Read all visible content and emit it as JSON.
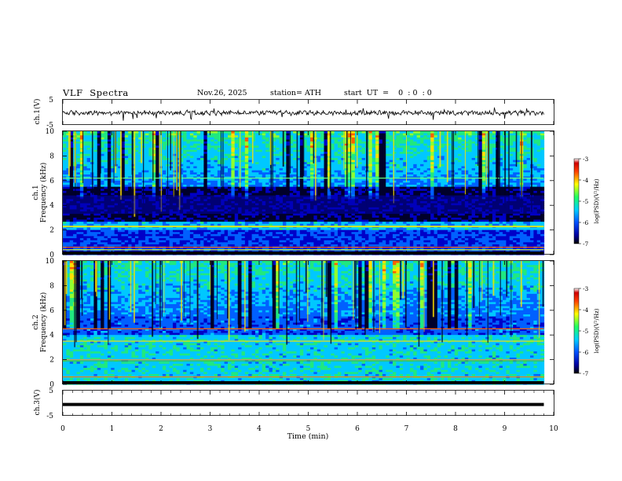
{
  "header": {
    "title": "VLF  Spectra",
    "date": "Nov.26, 2025",
    "station": "station= ATH",
    "start": "start  UT  =    0  : 0  : 0"
  },
  "chart_data": [
    {
      "type": "line",
      "name": "waveform-ch1",
      "ylabel": "ch.1(V)",
      "ylim": [
        -5,
        5
      ],
      "yticks": [
        "5",
        "-5"
      ],
      "xlim": [
        0,
        10
      ],
      "x_end": 9.8,
      "level": -0.2
    },
    {
      "type": "heatmap",
      "name": "spectrogram-ch1",
      "ylabel_channel": "ch.1",
      "ylabel": "Frequency  (kHz)",
      "ylim": [
        0,
        10
      ],
      "yticks": [
        "0",
        "2",
        "4",
        "6",
        "8",
        "10"
      ],
      "xlim": [
        0,
        10
      ],
      "x_end": 9.8,
      "colorbar": {
        "label": "log(PSD)(V²/Hz)",
        "range": [
          -7,
          -3
        ],
        "ticks": [
          "-3",
          "-4",
          "-5",
          "-6",
          "-7"
        ]
      }
    },
    {
      "type": "heatmap",
      "name": "spectrogram-ch2",
      "ylabel_channel": "ch.2",
      "ylabel": "Frequency  (kHz)",
      "ylim": [
        0,
        10
      ],
      "yticks": [
        "0",
        "2",
        "4",
        "6",
        "8",
        "10"
      ],
      "xlim": [
        0,
        10
      ],
      "x_end": 9.8,
      "colorbar": {
        "label": "log(PSD)(V²/Hz)",
        "range": [
          -7,
          -3
        ],
        "ticks": [
          "-3",
          "-4",
          "-5",
          "-6",
          "-7"
        ]
      }
    },
    {
      "type": "line",
      "name": "waveform-ch3",
      "ylabel": "ch.3(V)",
      "ylim": [
        -5,
        5
      ],
      "yticks": [
        "5",
        "-5"
      ],
      "xlim": [
        0,
        10
      ],
      "x_end": 9.8,
      "level": -0.5,
      "xlabel": "Time  (min)",
      "xticks": [
        "0",
        "1",
        "2",
        "3",
        "4",
        "5",
        "6",
        "7",
        "8",
        "9",
        "10"
      ]
    }
  ]
}
